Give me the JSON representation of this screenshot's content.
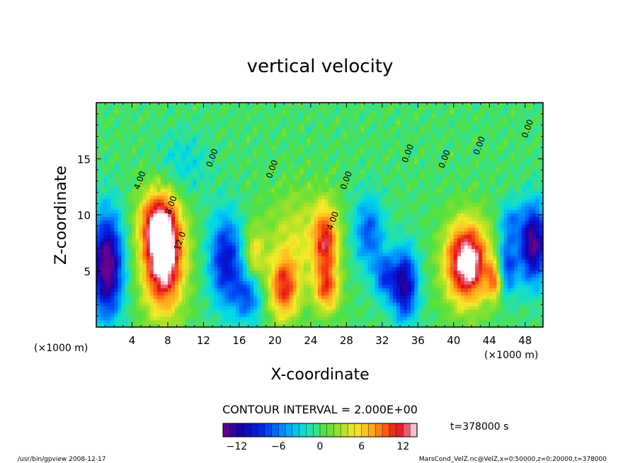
{
  "chart_data": {
    "type": "heatmap",
    "title": "vertical velocity",
    "xlabel": "X-coordinate",
    "ylabel": "Z-coordinate",
    "x_unit": "(×1000 m)",
    "xlim": [
      0,
      50
    ],
    "ylim": [
      0,
      20
    ],
    "x_ticks": [
      4,
      8,
      12,
      16,
      20,
      24,
      28,
      32,
      36,
      40,
      44,
      48
    ],
    "y_ticks": [
      5,
      10,
      15
    ],
    "contour_interval": "CONTOUR INTERVAL = 2.000E+00",
    "contour_labels": [
      {
        "text": "4.00",
        "x": 4.8,
        "z": 12.2
      },
      {
        "text": "8.00",
        "x": 8.3,
        "z": 10.0
      },
      {
        "text": "12.0",
        "x": 9.3,
        "z": 6.8
      },
      {
        "text": "0.00",
        "x": 12.9,
        "z": 14.2
      },
      {
        "text": "0.00",
        "x": 19.6,
        "z": 13.2
      },
      {
        "text": "4.00",
        "x": 26.4,
        "z": 8.6
      },
      {
        "text": "0.00",
        "x": 27.9,
        "z": 12.2
      },
      {
        "text": "0.00",
        "x": 34.8,
        "z": 14.6
      },
      {
        "text": "0.00",
        "x": 38.9,
        "z": 14.1
      },
      {
        "text": "0.00",
        "x": 42.8,
        "z": 15.3
      },
      {
        "text": "0.00",
        "x": 48.2,
        "z": 16.8
      }
    ],
    "field_features": [
      {
        "x": 7.5,
        "z": 6.5,
        "amp": 17,
        "sx": 1.6,
        "sz": 3.4
      },
      {
        "x": 6.6,
        "z": 9.5,
        "amp": 6,
        "sx": 1.4,
        "sz": 1.8
      },
      {
        "x": 41.5,
        "z": 5.8,
        "amp": 16,
        "sx": 1.7,
        "sz": 2.5
      },
      {
        "x": 44.6,
        "z": 4.2,
        "amp": 8,
        "sx": 0.6,
        "sz": 1.2
      },
      {
        "x": 21.0,
        "z": 3.5,
        "amp": 10,
        "sx": 1.2,
        "sz": 2.0
      },
      {
        "x": 25.7,
        "z": 7.6,
        "amp": 10,
        "sx": 1.0,
        "sz": 2.3
      },
      {
        "x": 25.8,
        "z": 3.3,
        "amp": 8,
        "sx": 1.0,
        "sz": 1.4
      },
      {
        "x": 22.5,
        "z": 8.0,
        "amp": 4,
        "sx": 2.5,
        "sz": 3.0
      },
      {
        "x": 17.7,
        "z": 6.4,
        "amp": 5,
        "sx": 0.8,
        "sz": 1.8
      },
      {
        "x": 1.2,
        "z": 5.5,
        "amp": -15,
        "sx": 1.2,
        "sz": 3.2
      },
      {
        "x": 14.5,
        "z": 6.0,
        "amp": -10,
        "sx": 1.3,
        "sz": 2.8
      },
      {
        "x": 17.0,
        "z": 2.8,
        "amp": -7,
        "sx": 1.1,
        "sz": 1.6
      },
      {
        "x": 30.5,
        "z": 8.5,
        "amp": -7,
        "sx": 1.2,
        "sz": 2.2
      },
      {
        "x": 34.5,
        "z": 3.8,
        "amp": -12,
        "sx": 1.0,
        "sz": 2.2
      },
      {
        "x": 32.3,
        "z": 4.5,
        "amp": -7,
        "sx": 0.9,
        "sz": 1.4
      },
      {
        "x": 48.9,
        "z": 7.5,
        "amp": -14,
        "sx": 1.1,
        "sz": 2.4
      },
      {
        "x": 46.0,
        "z": 5.5,
        "amp": -8,
        "sx": 0.8,
        "sz": 1.8
      },
      {
        "x": 46.3,
        "z": 9.5,
        "amp": -5,
        "sx": 0.8,
        "sz": 1.2
      },
      {
        "x": 9.5,
        "z": 14.5,
        "amp": -3,
        "sx": 2.0,
        "sz": 2.0
      }
    ]
  },
  "colorbar": {
    "min": -14,
    "max": 14,
    "step": 1,
    "ticks": [
      -12,
      -6,
      0,
      6,
      12
    ],
    "tick_labels": [
      "−12",
      "−6",
      "0",
      "6",
      "12"
    ]
  },
  "time_label": "t=378000  s",
  "footer_left": "/usr/bin/gpview  2008-12-17",
  "footer_right": "MarsCond_VelZ.nc@VelZ,x=0:50000,z=0:20000,t=378000"
}
